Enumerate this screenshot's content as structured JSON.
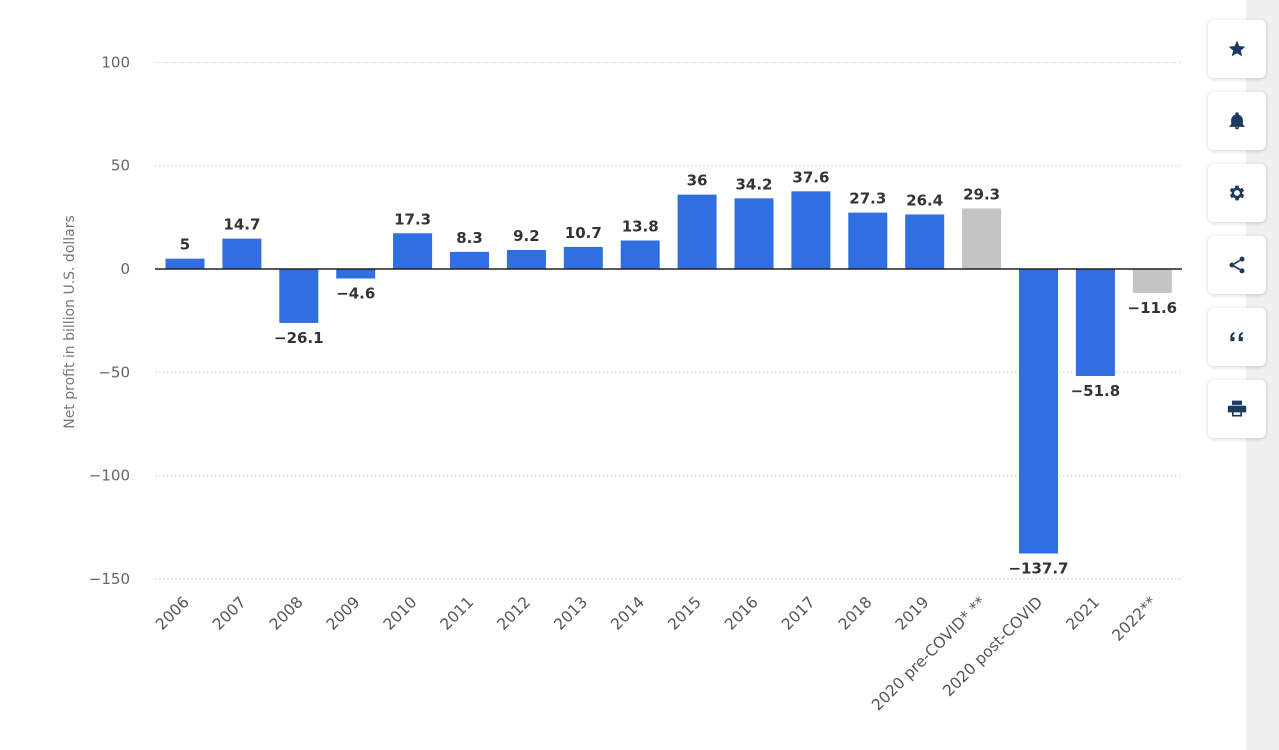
{
  "chart_data": {
    "type": "bar",
    "ylabel": "Net profit in billion U.S. dollars",
    "ylim": [
      -150,
      100
    ],
    "yticks": [
      100,
      50,
      0,
      -50,
      -100,
      -150
    ],
    "grid": true,
    "legend": "none",
    "categories": [
      "2006",
      "2007",
      "2008",
      "2009",
      "2010",
      "2011",
      "2012",
      "2013",
      "2014",
      "2015",
      "2016",
      "2017",
      "2018",
      "2019",
      "2020 pre-COVID* **",
      "2020 post-COVID",
      "2021",
      "2022**"
    ],
    "values": [
      5,
      14.7,
      -26.1,
      -4.6,
      17.3,
      8.3,
      9.2,
      10.7,
      13.8,
      36,
      34.2,
      37.6,
      27.3,
      26.4,
      29.3,
      -137.7,
      -51.8,
      -11.6
    ],
    "value_labels": [
      "5",
      "14.7",
      "−26.1",
      "−4.6",
      "17.3",
      "8.3",
      "9.2",
      "10.7",
      "13.8",
      "36",
      "34.2",
      "37.6",
      "27.3",
      "26.4",
      "29.3",
      "−137.7",
      "−51.8",
      "−11.6"
    ],
    "bar_colors": [
      "#2f6fdf",
      "#2f6fdf",
      "#2f6fdf",
      "#2f6fdf",
      "#2f6fdf",
      "#2f6fdf",
      "#2f6fdf",
      "#2f6fdf",
      "#2f6fdf",
      "#2f6fdf",
      "#2f6fdf",
      "#2f6fdf",
      "#2f6fdf",
      "#2f6fdf",
      "#c4c4c4",
      "#2f6fdf",
      "#2f6fdf",
      "#c4c4c4"
    ]
  },
  "toolbar": [
    {
      "icon": "star-icon",
      "name": "favorite-button"
    },
    {
      "icon": "bell-icon",
      "name": "notification-button"
    },
    {
      "icon": "gear-icon",
      "name": "settings-button"
    },
    {
      "icon": "share-icon",
      "name": "share-button"
    },
    {
      "icon": "quote-icon",
      "name": "cite-button"
    },
    {
      "icon": "print-icon",
      "name": "print-button"
    }
  ]
}
